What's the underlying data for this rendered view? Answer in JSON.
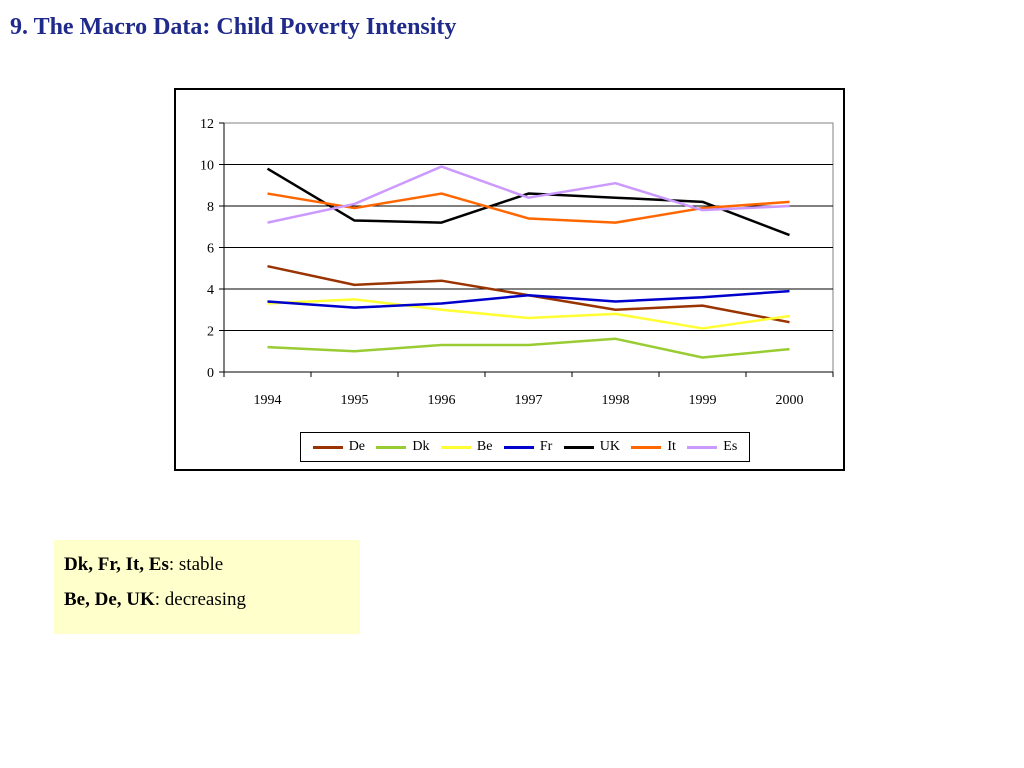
{
  "title": "9. The Macro Data: Child Poverty Intensity",
  "chart_data": {
    "type": "line",
    "title": "",
    "xlabel": "",
    "ylabel": "",
    "x": [
      "1994",
      "1995",
      "1996",
      "1997",
      "1998",
      "1999",
      "2000"
    ],
    "ylim": [
      0,
      12
    ],
    "yticks": [
      0,
      2,
      4,
      6,
      8,
      10,
      12
    ],
    "grid": true,
    "legend_position": "bottom",
    "series": [
      {
        "name": "De",
        "color": "#993300",
        "values": [
          5.1,
          4.2,
          4.4,
          3.7,
          3.0,
          3.2,
          2.4
        ]
      },
      {
        "name": "Dk",
        "color": "#99cc33",
        "values": [
          1.2,
          1.0,
          1.3,
          1.3,
          1.6,
          0.7,
          1.1
        ]
      },
      {
        "name": "Be",
        "color": "#ffff33",
        "values": [
          3.3,
          3.5,
          3.0,
          2.6,
          2.8,
          2.1,
          2.7
        ]
      },
      {
        "name": "Fr",
        "color": "#0000cc",
        "values": [
          3.4,
          3.1,
          3.3,
          3.7,
          3.4,
          3.6,
          3.9
        ]
      },
      {
        "name": "UK",
        "color": "#000000",
        "values": [
          9.8,
          7.3,
          7.2,
          8.6,
          8.4,
          8.2,
          6.6
        ]
      },
      {
        "name": "It",
        "color": "#ff6600",
        "values": [
          8.6,
          7.9,
          8.6,
          7.4,
          7.2,
          7.9,
          8.2
        ]
      },
      {
        "name": "Es",
        "color": "#cc99ff",
        "values": [
          7.2,
          8.1,
          9.9,
          8.4,
          9.1,
          7.8,
          8.0
        ]
      }
    ]
  },
  "note": {
    "line1_bold": "Dk, Fr, It, Es",
    "line1_rest": ": stable",
    "line2_bold": "Be, De, UK",
    "line2_rest": ": decreasing"
  }
}
